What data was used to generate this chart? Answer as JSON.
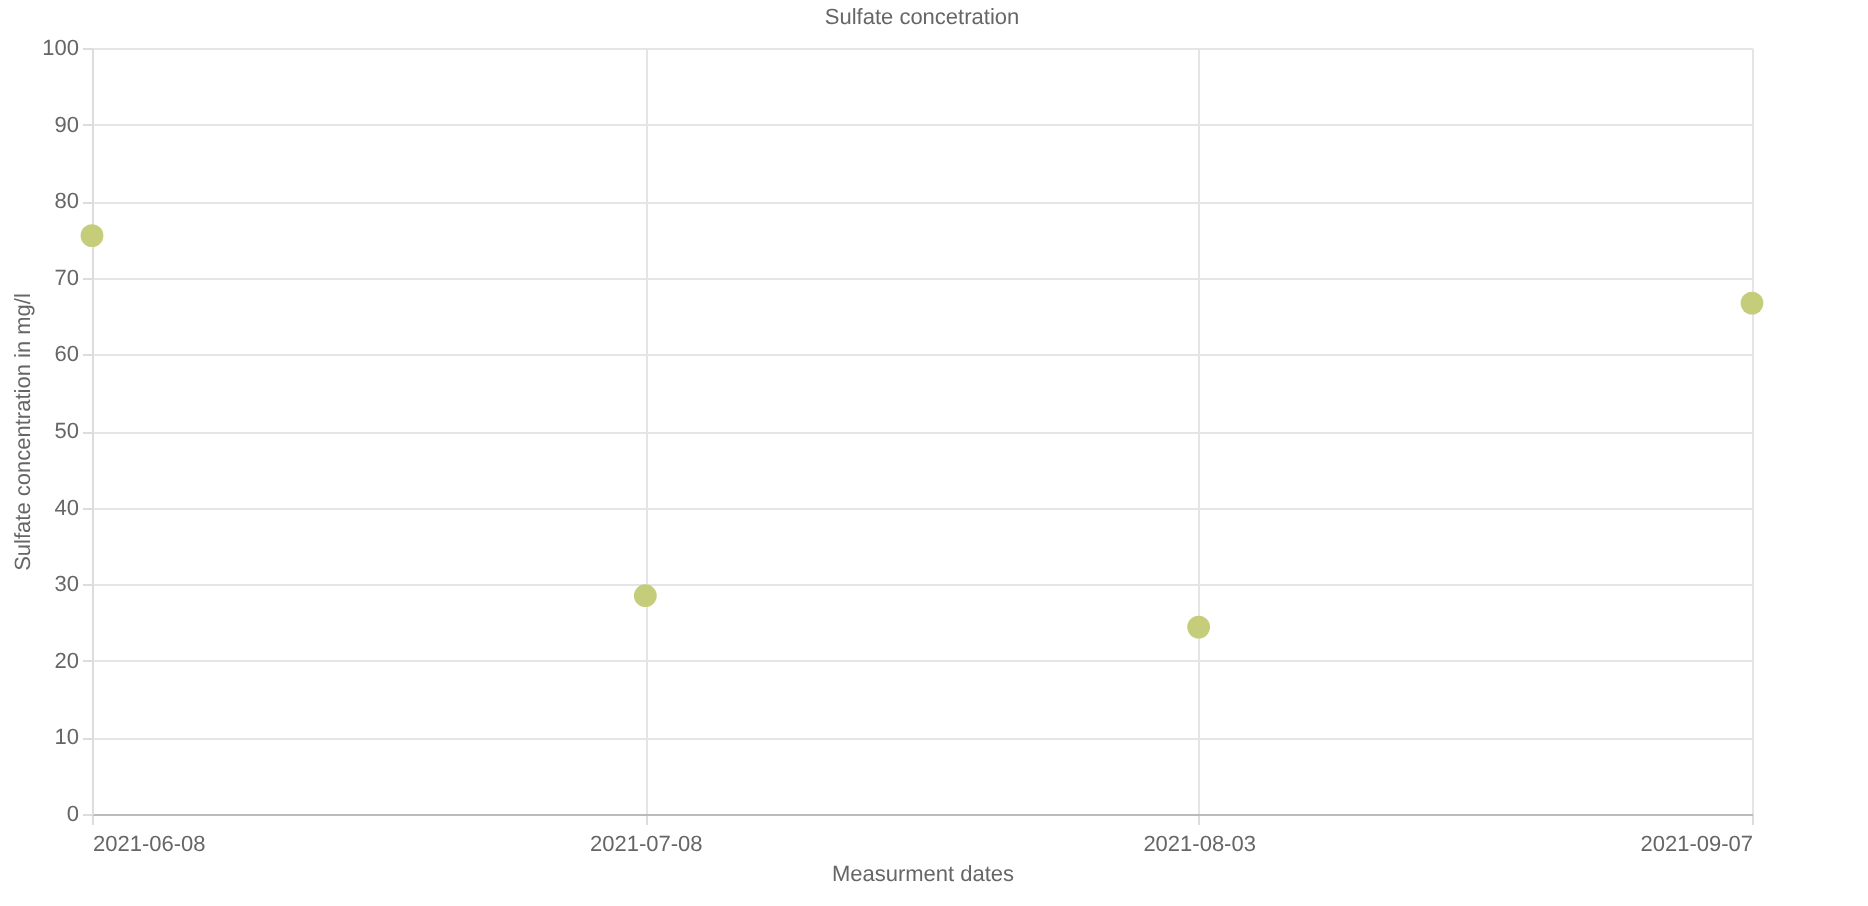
{
  "chart_data": {
    "type": "scatter",
    "title": "Sulfate concetration",
    "xlabel": "Measurment dates",
    "ylabel": "Sulfate concentration in mg/l",
    "categories": [
      "2021-06-08",
      "2021-07-08",
      "2021-08-03",
      "2021-09-07"
    ],
    "series": [
      {
        "color": "#c5cc7a",
        "values": [
          75.5,
          28.5,
          24.4,
          66.7
        ]
      }
    ],
    "ylim": [
      0,
      100
    ],
    "yticks": [
      0,
      10,
      20,
      30,
      40,
      50,
      60,
      70,
      80,
      90,
      100
    ],
    "grid": true,
    "marker": "circle"
  }
}
